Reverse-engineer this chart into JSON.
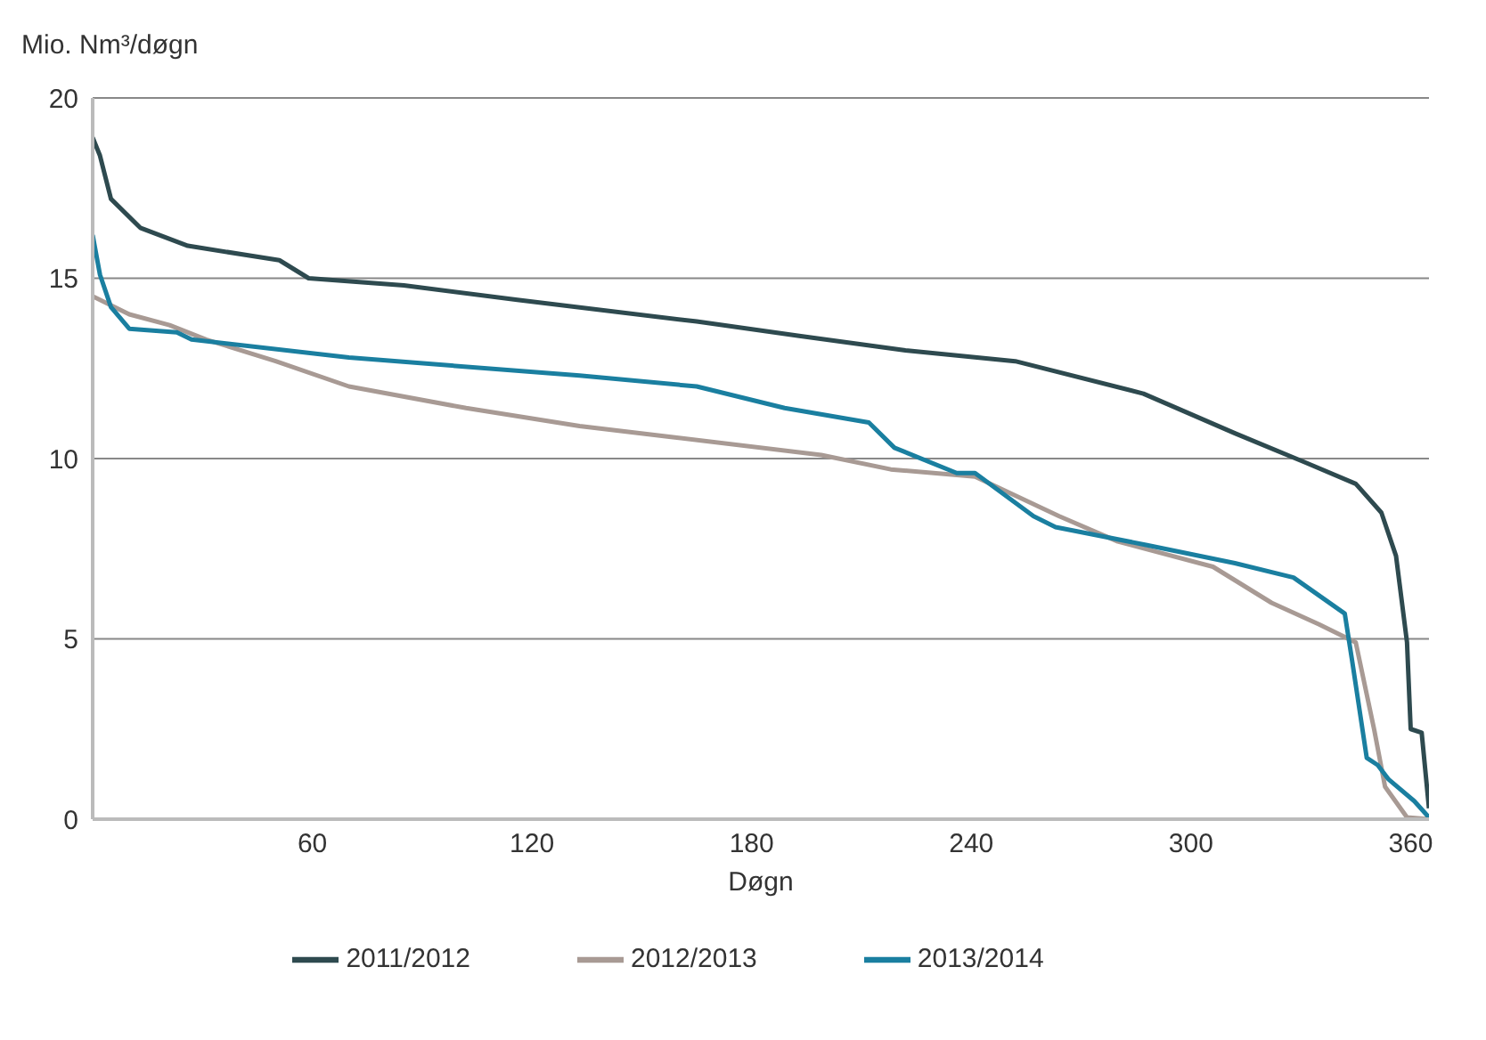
{
  "chart_data": {
    "type": "line",
    "xlabel": "Døgn",
    "ylabel": "Mio. Nm³/døgn",
    "xlim": [
      0,
      365
    ],
    "xticks": [
      60,
      120,
      180,
      240,
      300,
      360
    ],
    "ylim": [
      0,
      20
    ],
    "yticks": [
      0,
      5,
      10,
      15,
      20
    ],
    "grid": "y",
    "legend": "bottom",
    "marker": "none",
    "line_style": "solid",
    "series": [
      {
        "name": "2011/2012",
        "color": "#2e4a4f",
        "x": [
          0,
          2,
          5,
          13,
          26,
          51,
          59,
          85,
          116,
          165,
          193,
          222,
          252,
          287,
          312,
          331,
          345,
          352,
          356,
          359,
          360,
          363,
          365
        ],
        "values": [
          18.9,
          18.4,
          17.2,
          16.4,
          15.9,
          15.5,
          15.0,
          14.8,
          14.4,
          13.8,
          13.4,
          13.0,
          12.7,
          11.8,
          10.7,
          9.9,
          9.3,
          8.5,
          7.3,
          4.9,
          2.5,
          2.4,
          0.3
        ]
      },
      {
        "name": "2012/2013",
        "color": "#a89a94",
        "x": [
          0,
          10,
          21,
          31,
          50,
          70,
          102,
          133,
          158,
          199,
          218,
          241,
          264,
          280,
          306,
          322,
          335,
          345,
          350,
          353,
          359,
          365
        ],
        "values": [
          14.5,
          14.0,
          13.7,
          13.3,
          12.7,
          12.0,
          11.4,
          10.9,
          10.6,
          10.1,
          9.7,
          9.5,
          8.4,
          7.7,
          7.0,
          6.0,
          5.4,
          4.9,
          2.5,
          0.9,
          0.05,
          0
        ]
      },
      {
        "name": "2013/2014",
        "color": "#1a7fa0",
        "x": [
          0,
          2,
          5,
          10,
          23,
          27,
          70,
          133,
          165,
          189,
          212,
          219,
          236,
          241,
          257,
          263,
          288,
          312,
          328,
          342,
          344,
          348,
          351,
          354,
          361,
          365
        ],
        "values": [
          16.2,
          15.1,
          14.2,
          13.6,
          13.5,
          13.3,
          12.8,
          12.3,
          12.0,
          11.4,
          11.0,
          10.3,
          9.6,
          9.6,
          8.4,
          8.1,
          7.6,
          7.1,
          6.7,
          5.7,
          4.4,
          1.7,
          1.5,
          1.1,
          0.5,
          0.05
        ]
      }
    ]
  }
}
